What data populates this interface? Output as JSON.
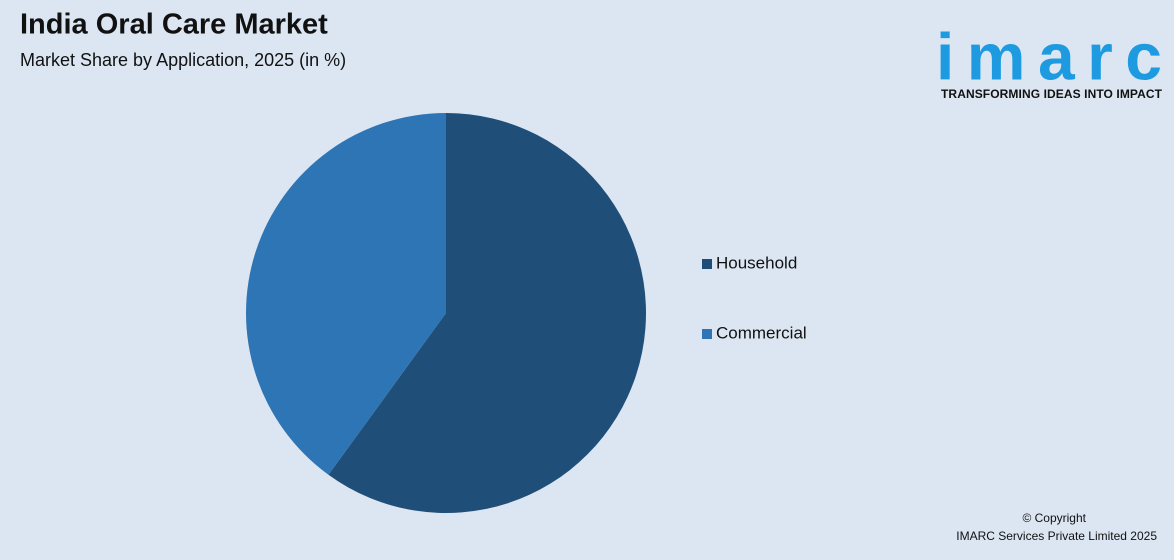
{
  "chart_data": {
    "type": "pie",
    "title": "India Oral Care Market",
    "subtitle": "Market Share by Application, 2025 (in %)",
    "categories": [
      "Household",
      "Commercial"
    ],
    "values": [
      60,
      40
    ],
    "colors": [
      "#1f4e79",
      "#2e75b6"
    ],
    "legend": "right"
  },
  "branding": {
    "logo": "imarc",
    "tagline": "TRANSFORMING IDEAS INTO IMPACT"
  },
  "footer": {
    "copyright": "© Copyright",
    "company": "IMARC Services Private Limited 2025"
  }
}
